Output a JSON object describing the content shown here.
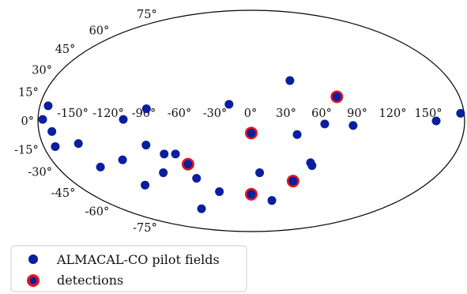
{
  "chart_data": {
    "type": "scatter",
    "projection": "mollweide",
    "title": "",
    "xlabel": "",
    "ylabel": "",
    "xlim": [
      -180,
      180
    ],
    "ylim": [
      -90,
      90
    ],
    "grid": true,
    "legend_placement": "bottom-left",
    "lon_ticks": [
      -150,
      -120,
      -90,
      -60,
      -30,
      0,
      30,
      60,
      90,
      120,
      150
    ],
    "lon_tick_labels": [
      "-150°",
      "-120°",
      "-90°",
      "-60°",
      "-30°",
      "0°",
      "30°",
      "60°",
      "90°",
      "120°",
      "150°"
    ],
    "lat_ticks": [
      75,
      60,
      45,
      30,
      15,
      0,
      -15,
      -30,
      -45,
      -60,
      -75
    ],
    "lat_tick_labels": [
      "75°",
      "60°",
      "45°",
      "30°",
      "15°",
      "0°",
      "-15°",
      "-30°",
      "-45°",
      "-60°",
      "-75°"
    ],
    "series": [
      {
        "name": "ALMACAL-CO pilot fields",
        "color": "#0a1e9e",
        "points": [
          [
            -173,
            10
          ],
          [
            -176,
            1
          ],
          [
            -169,
            -7
          ],
          [
            -170,
            -17
          ],
          [
            -149,
            -15
          ],
          [
            -140,
            -31
          ],
          [
            -116,
            -26
          ],
          [
            -110,
            -44
          ],
          [
            -108,
            1
          ],
          [
            -89,
            8
          ],
          [
            -91,
            -16
          ],
          [
            -84,
            -35
          ],
          [
            -77,
            -22
          ],
          [
            -67,
            -22
          ],
          [
            -69,
            -63
          ],
          [
            -54,
            -39
          ],
          [
            -35,
            -49
          ],
          [
            -19,
            11
          ],
          [
            0,
            -8
          ],
          [
            8,
            -35
          ],
          [
            35,
            27
          ],
          [
            39,
            -9
          ],
          [
            25,
            -56
          ],
          [
            54,
            -28
          ],
          [
            56,
            -30
          ],
          [
            62,
            -2
          ],
          [
            74,
            16
          ],
          [
            86,
            -3
          ],
          [
            156,
            0
          ],
          [
            177,
            5
          ],
          [
            -58,
            -29
          ],
          [
            0,
            -51
          ],
          [
            42,
            -41
          ]
        ]
      },
      {
        "name": "detections",
        "color": "#e8141c",
        "points": [
          [
            -58,
            -29
          ],
          [
            0,
            -8
          ],
          [
            0,
            -51
          ],
          [
            42,
            -41
          ],
          [
            74,
            16
          ]
        ]
      }
    ]
  }
}
